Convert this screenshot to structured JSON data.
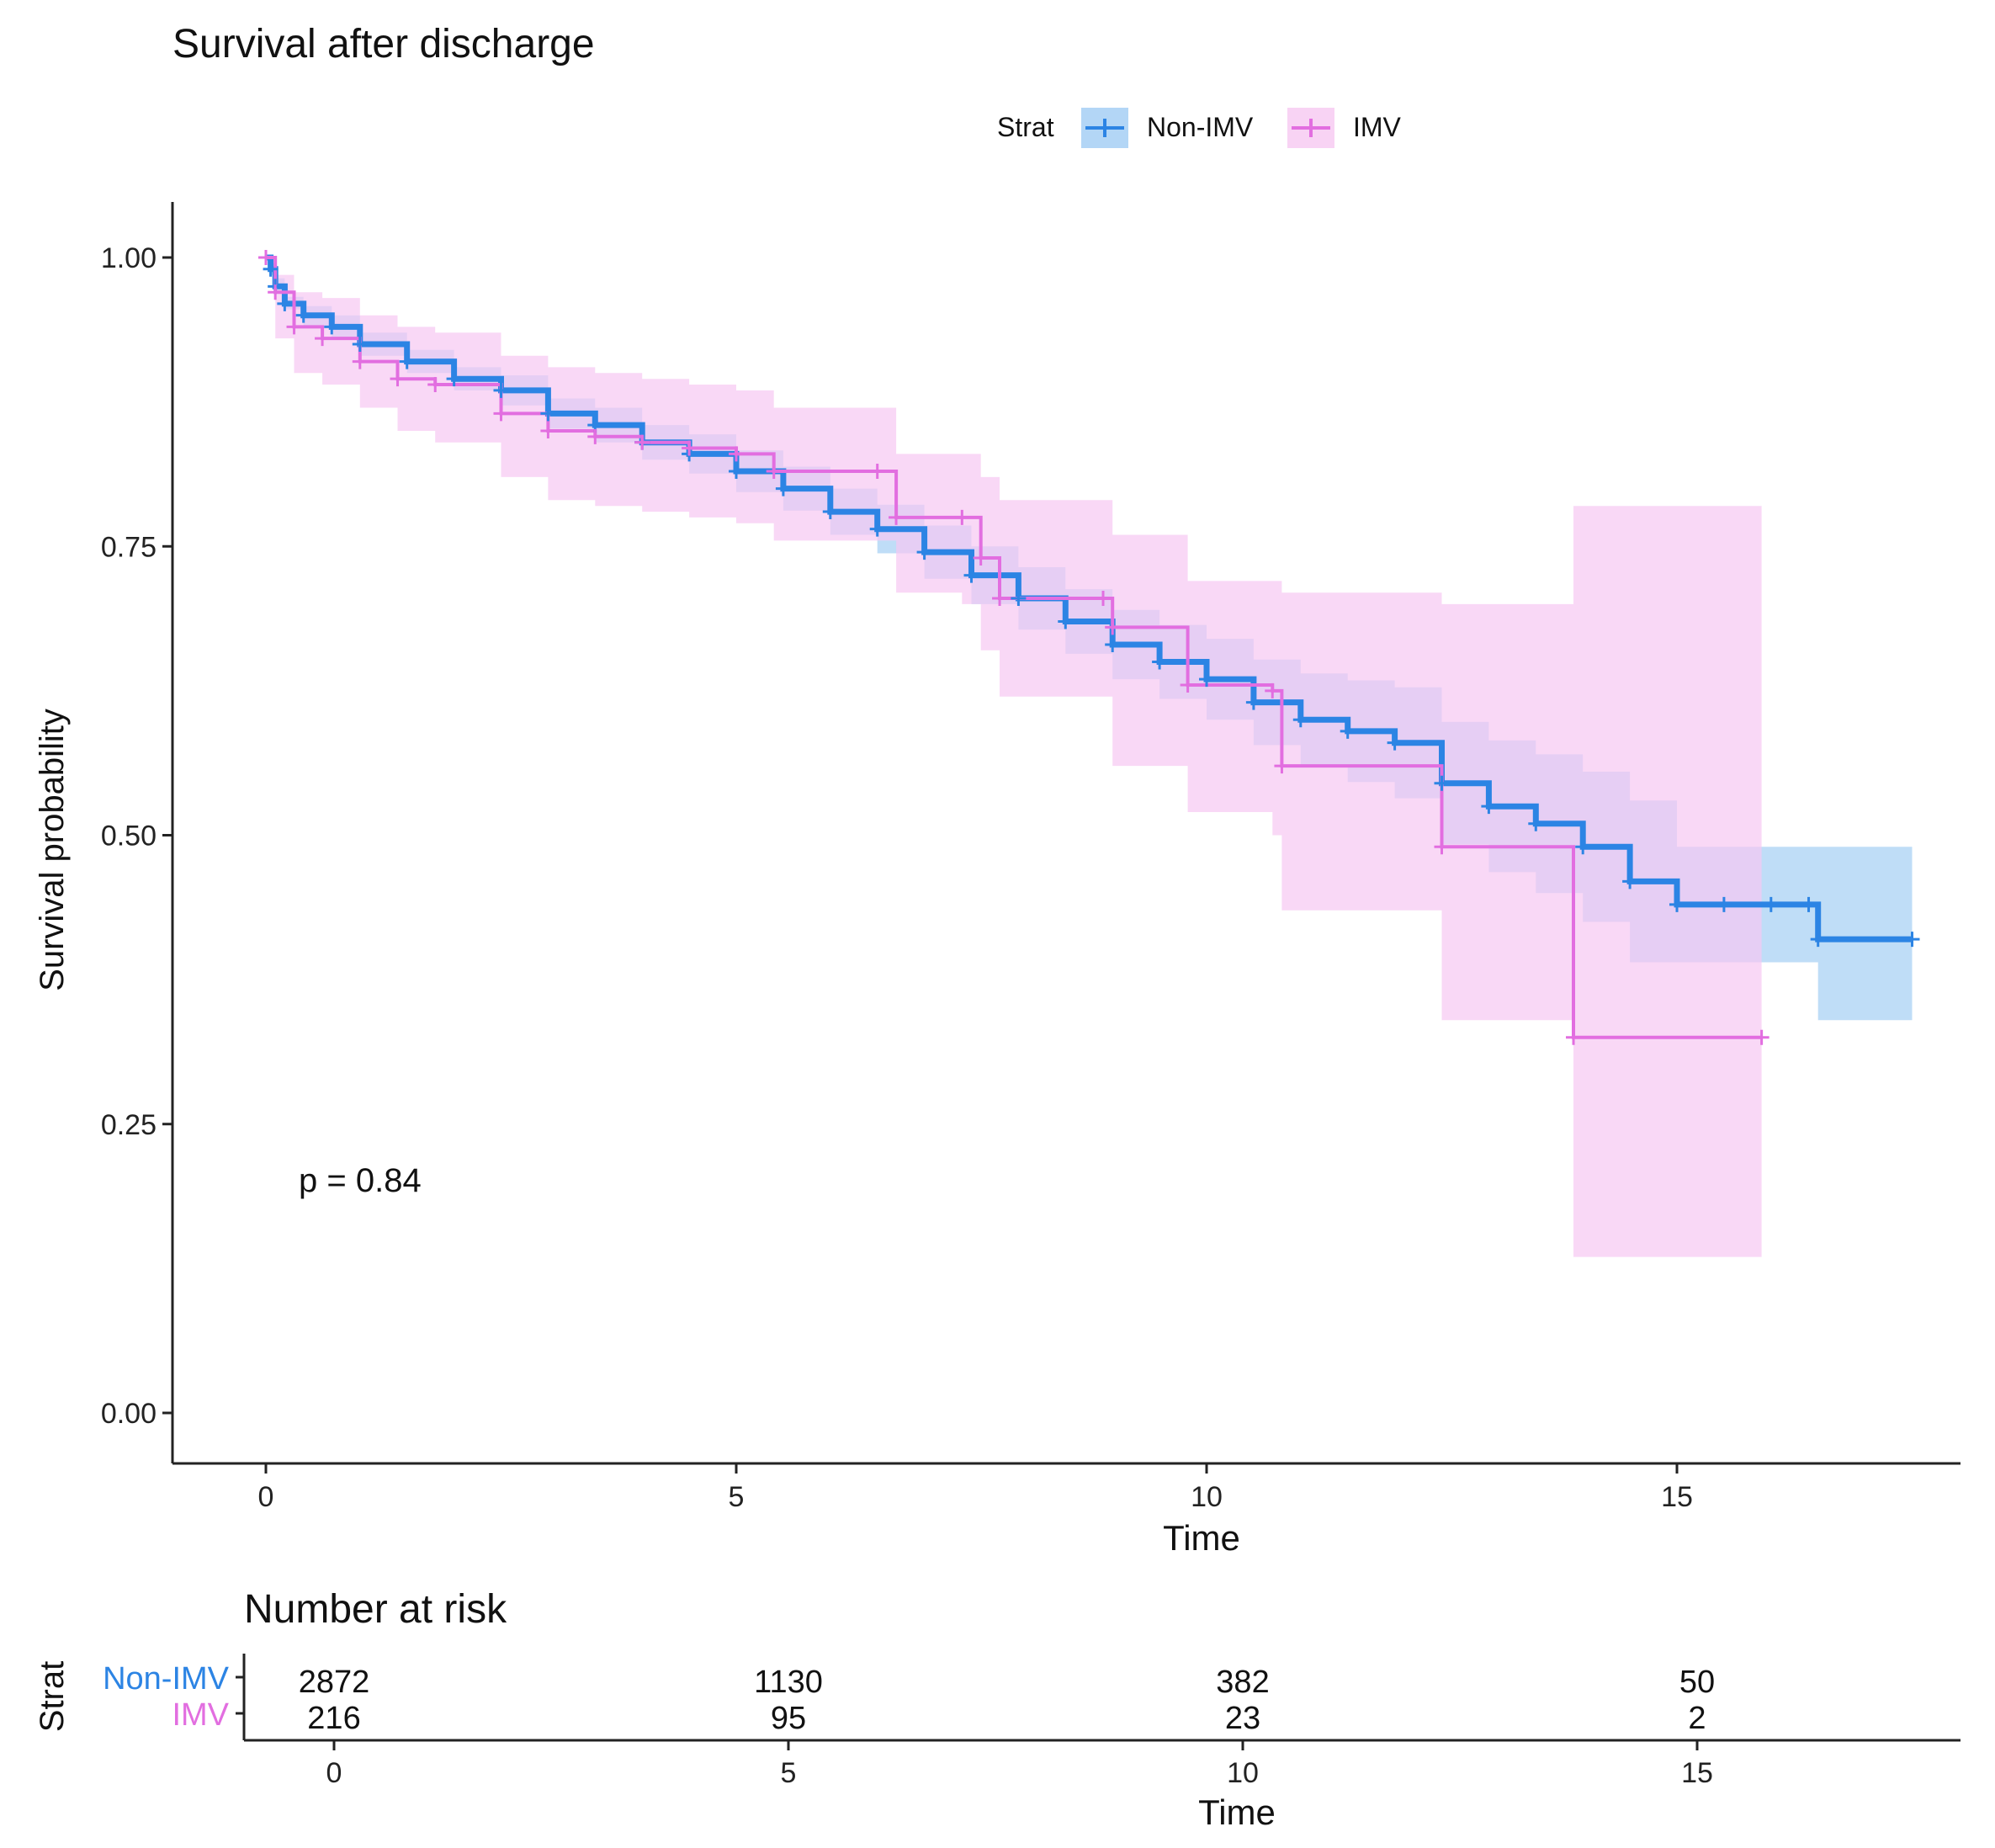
{
  "chart_data": {
    "type": "line",
    "subtype": "kaplan-meier",
    "title": "Survival after discharge",
    "xlabel": "Time",
    "ylabel": "Survival probability",
    "xlim": [
      -0.9,
      18.2
    ],
    "ylim": [
      -0.05,
      1.05
    ],
    "xticks": [
      0,
      5,
      10,
      15
    ],
    "yticks": [
      0.0,
      0.25,
      0.5,
      0.75,
      1.0
    ],
    "ytick_labels": [
      "0.00",
      "0.25",
      "0.50",
      "0.75",
      "1.00"
    ],
    "grid": false,
    "legend": {
      "position": "top",
      "title": "Strat"
    },
    "annotation": "p = 0.84",
    "series": [
      {
        "name": "Non-IMV",
        "color": "#2c84e4",
        "band_color": "#9ccbf3",
        "x": [
          0,
          0.05,
          0.1,
          0.2,
          0.4,
          0.7,
          1.0,
          1.5,
          2.0,
          2.5,
          3.0,
          3.5,
          4.0,
          4.5,
          5.0,
          5.5,
          6.0,
          6.5,
          7.0,
          7.5,
          8.0,
          8.5,
          9.0,
          9.5,
          10.0,
          10.5,
          11.0,
          11.5,
          12.0,
          12.5,
          13.0,
          13.5,
          14.0,
          14.5,
          15.0,
          15.5,
          16.0,
          16.4,
          16.5,
          17.5
        ],
        "y": [
          1.0,
          0.99,
          0.975,
          0.96,
          0.95,
          0.94,
          0.925,
          0.91,
          0.895,
          0.885,
          0.865,
          0.855,
          0.84,
          0.83,
          0.815,
          0.8,
          0.78,
          0.765,
          0.745,
          0.725,
          0.705,
          0.685,
          0.665,
          0.65,
          0.635,
          0.615,
          0.6,
          0.59,
          0.58,
          0.545,
          0.525,
          0.51,
          0.49,
          0.46,
          0.44,
          0.44,
          0.44,
          0.44,
          0.41,
          0.41
        ],
        "ci_lower": [
          1.0,
          0.985,
          0.97,
          0.955,
          0.94,
          0.93,
          0.915,
          0.9,
          0.885,
          0.872,
          0.852,
          0.84,
          0.825,
          0.813,
          0.797,
          0.781,
          0.76,
          0.744,
          0.722,
          0.7,
          0.678,
          0.657,
          0.635,
          0.618,
          0.6,
          0.578,
          0.56,
          0.546,
          0.532,
          0.492,
          0.468,
          0.45,
          0.425,
          0.39,
          0.39,
          0.39,
          0.39,
          0.39,
          0.34,
          0.34
        ],
        "ci_upper": [
          1.0,
          0.995,
          0.982,
          0.966,
          0.958,
          0.95,
          0.935,
          0.92,
          0.905,
          0.898,
          0.878,
          0.87,
          0.855,
          0.847,
          0.833,
          0.819,
          0.8,
          0.786,
          0.768,
          0.75,
          0.732,
          0.713,
          0.695,
          0.682,
          0.67,
          0.652,
          0.64,
          0.634,
          0.628,
          0.598,
          0.582,
          0.57,
          0.555,
          0.53,
          0.49,
          0.49,
          0.49,
          0.49,
          0.49,
          0.49
        ]
      },
      {
        "name": "IMV",
        "color": "#e26ee0",
        "band_color": "#f6c7f2",
        "x": [
          0,
          0.1,
          0.3,
          0.6,
          1.0,
          1.4,
          1.8,
          2.5,
          3.0,
          3.5,
          4.0,
          4.5,
          5.0,
          5.4,
          6.5,
          6.7,
          7.4,
          7.6,
          7.8,
          8.9,
          9.0,
          9.8,
          10.7,
          10.8,
          12.5,
          13.9,
          15.9
        ],
        "y": [
          1.0,
          0.97,
          0.94,
          0.93,
          0.91,
          0.895,
          0.89,
          0.865,
          0.85,
          0.845,
          0.84,
          0.835,
          0.83,
          0.815,
          0.815,
          0.775,
          0.775,
          0.74,
          0.705,
          0.705,
          0.68,
          0.63,
          0.625,
          0.56,
          0.49,
          0.325,
          0.325
        ],
        "ci_lower": [
          1.0,
          0.93,
          0.9,
          0.89,
          0.87,
          0.85,
          0.84,
          0.81,
          0.79,
          0.785,
          0.78,
          0.775,
          0.77,
          0.755,
          0.755,
          0.71,
          0.7,
          0.66,
          0.62,
          0.62,
          0.56,
          0.52,
          0.5,
          0.435,
          0.34,
          0.135,
          0.135
        ],
        "ci_upper": [
          1.0,
          0.985,
          0.97,
          0.965,
          0.95,
          0.94,
          0.935,
          0.915,
          0.905,
          0.9,
          0.895,
          0.89,
          0.885,
          0.87,
          0.87,
          0.83,
          0.83,
          0.81,
          0.79,
          0.79,
          0.76,
          0.72,
          0.72,
          0.71,
          0.7,
          0.785,
          0.785
        ]
      }
    ],
    "risk_table": {
      "title": "Number at risk",
      "ylabel": "Strat",
      "xlabel": "Time",
      "times": [
        0,
        5,
        10,
        15
      ],
      "rows": [
        {
          "name": "Non-IMV",
          "color": "#2c84e4",
          "values": [
            "2872",
            "1130",
            "382",
            "50"
          ]
        },
        {
          "name": "IMV",
          "color": "#e26ee0",
          "values": [
            "216",
            "95",
            "23",
            "2"
          ]
        }
      ]
    }
  }
}
